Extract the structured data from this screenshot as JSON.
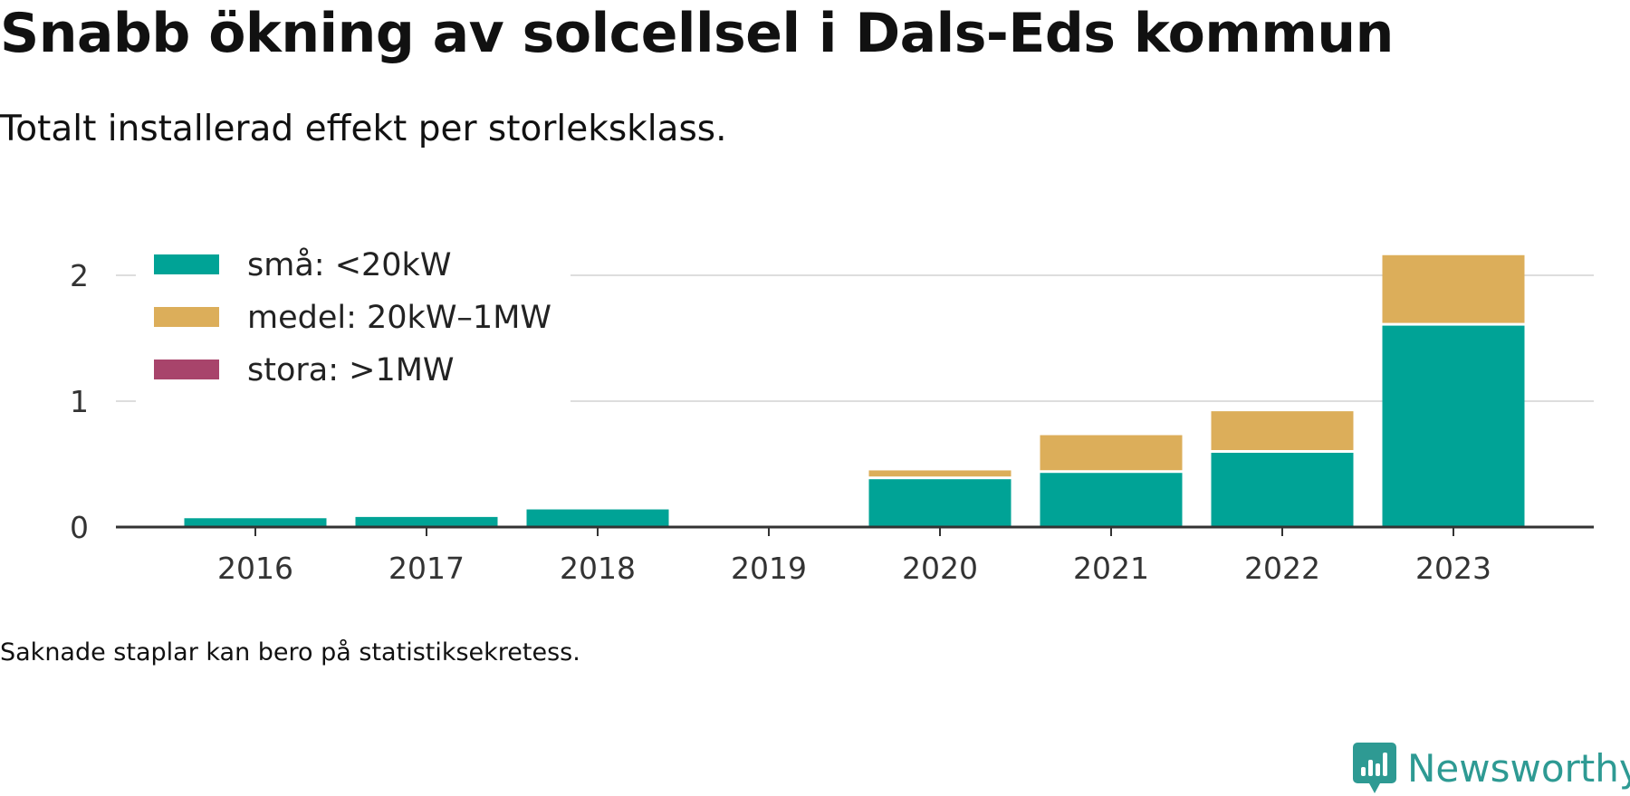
{
  "title": "Snabb ökning av solcellsel i Dals-Eds kommun",
  "subtitle": "Totalt installerad effekt per storleksklass.",
  "footnote": "Saknade staplar kan bero på statistiksekretess.",
  "brand": {
    "name": "Newsworthy",
    "logo_icon": "newsworthy-logo-icon",
    "color": "#2e9a93"
  },
  "chart_data": {
    "type": "bar",
    "stacked": true,
    "categories": [
      "2016",
      "2017",
      "2018",
      "2019",
      "2020",
      "2021",
      "2022",
      "2023"
    ],
    "series": [
      {
        "name": "små: <20kW",
        "color": "#00a396",
        "values": [
          0.07,
          0.08,
          0.14,
          0,
          0.38,
          0.43,
          0.59,
          1.6
        ]
      },
      {
        "name": "medel: 20kW–1MW",
        "color": "#dcae5a",
        "values": [
          0,
          0.02,
          0,
          0,
          0.07,
          0.3,
          0.33,
          0.56
        ]
      },
      {
        "name": "stora: >1MW",
        "color": "#a8446b",
        "values": [
          0,
          0,
          0,
          0,
          0,
          0,
          0,
          0
        ]
      }
    ],
    "ylim": [
      0,
      2.2
    ],
    "yticks": [
      0,
      1,
      2
    ],
    "grid": true,
    "legend": "top-left",
    "xlabel": "",
    "ylabel": ""
  }
}
